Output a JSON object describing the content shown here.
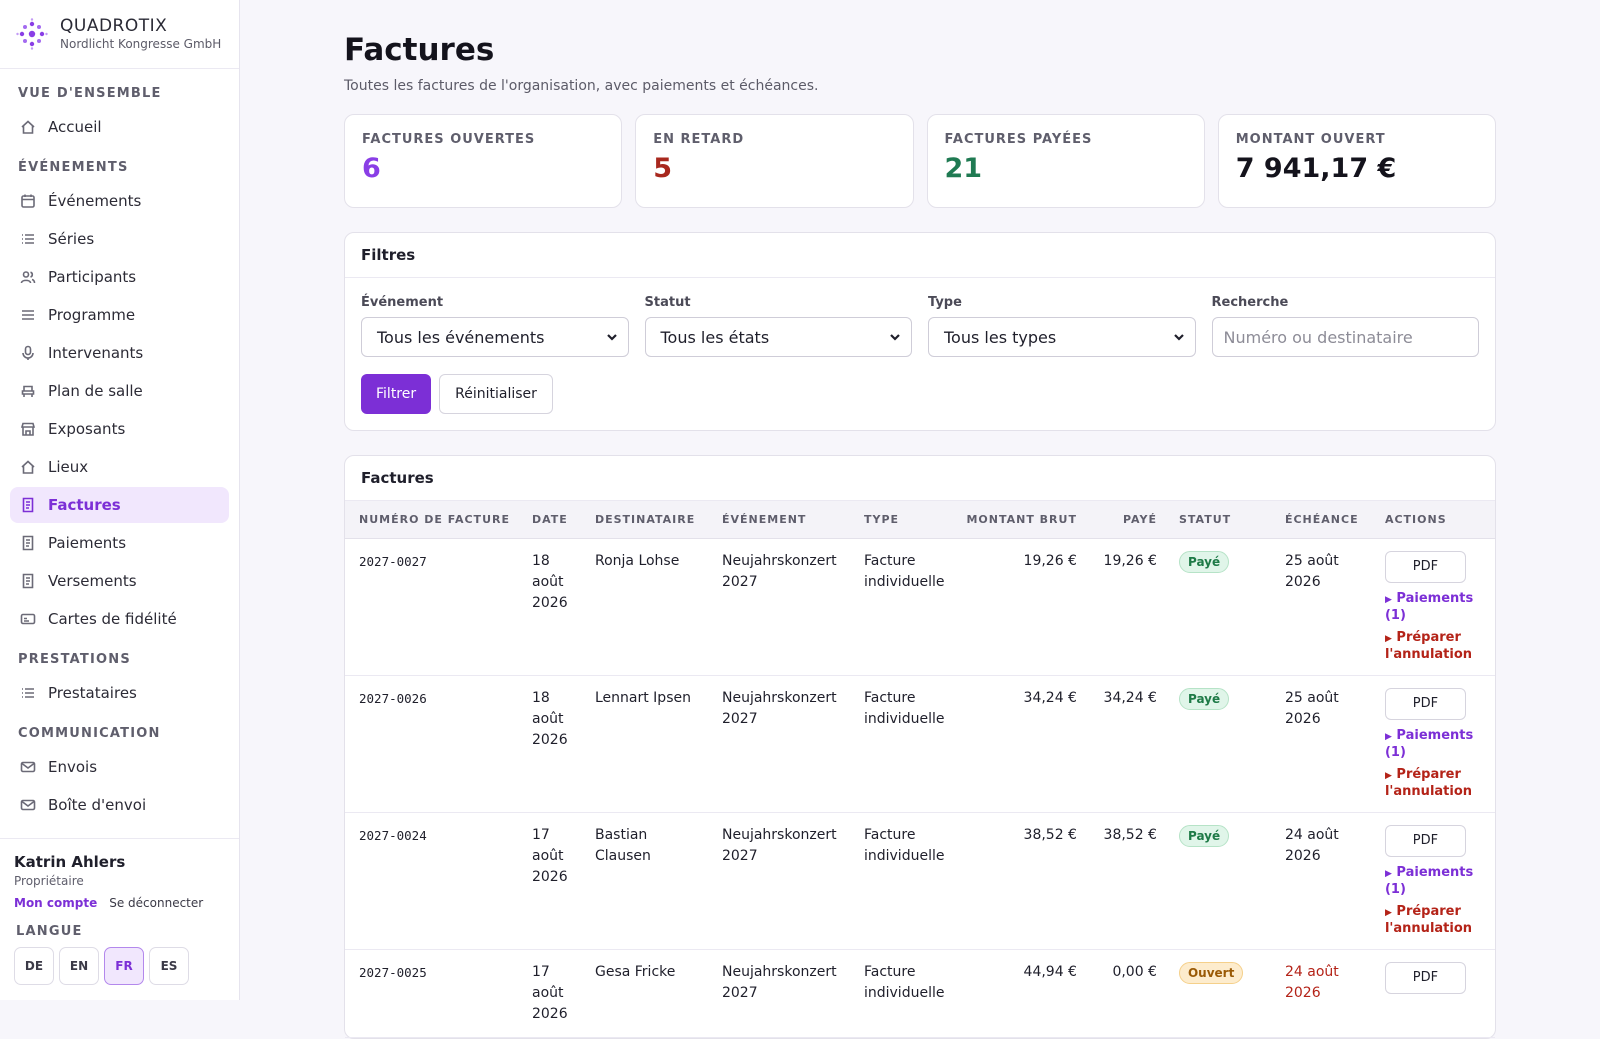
{
  "brand": {
    "name": "QUADROTIX",
    "org": "Nordlicht Kongresse GmbH"
  },
  "nav": {
    "sections": [
      {
        "title": "VUE D'ENSEMBLE",
        "items": [
          {
            "label": "Accueil",
            "icon": "home-icon"
          }
        ]
      },
      {
        "title": "ÉVÉNEMENTS",
        "items": [
          {
            "label": "Événements",
            "icon": "calendar-icon"
          },
          {
            "label": "Séries",
            "icon": "list-icon"
          },
          {
            "label": "Participants",
            "icon": "users-icon"
          },
          {
            "label": "Programme",
            "icon": "menu-icon"
          },
          {
            "label": "Intervenants",
            "icon": "microphone-icon"
          },
          {
            "label": "Plan de salle",
            "icon": "seat-icon"
          },
          {
            "label": "Exposants",
            "icon": "store-icon"
          },
          {
            "label": "Lieux",
            "icon": "home-icon"
          },
          {
            "label": "Factures",
            "icon": "receipt-icon",
            "active": true
          },
          {
            "label": "Paiements",
            "icon": "receipt-icon"
          },
          {
            "label": "Versements",
            "icon": "receipt-icon"
          },
          {
            "label": "Cartes de fidélité",
            "icon": "card-icon"
          }
        ]
      },
      {
        "title": "PRESTATIONS",
        "items": [
          {
            "label": "Prestataires",
            "icon": "list-icon"
          }
        ]
      },
      {
        "title": "COMMUNICATION",
        "items": [
          {
            "label": "Envois",
            "icon": "mail-icon"
          },
          {
            "label": "Boîte d'envoi",
            "icon": "mail-icon"
          }
        ]
      }
    ]
  },
  "user": {
    "name": "Katrin Ahlers",
    "role": "Propriétaire",
    "account_link": "Mon compte",
    "logout_link": "Se déconnecter"
  },
  "language": {
    "label": "LANGUE",
    "options": [
      "DE",
      "EN",
      "FR",
      "ES"
    ],
    "active": "FR"
  },
  "page": {
    "title": "Factures",
    "subtitle": "Toutes les factures de l'organisation, avec paiements et échéances."
  },
  "stats": [
    {
      "label": "FACTURES OUVERTES",
      "value": "6",
      "color": "#8a3ee6"
    },
    {
      "label": "EN RETARD",
      "value": "5",
      "color": "#a8281e"
    },
    {
      "label": "FACTURES PAYÉES",
      "value": "21",
      "color": "#1f7a52"
    },
    {
      "label": "MONTANT OUVERT",
      "value": "7 941,17 €",
      "color": "#14131c"
    }
  ],
  "filters": {
    "title": "Filtres",
    "event": {
      "label": "Événement",
      "value": "Tous les événements"
    },
    "status": {
      "label": "Statut",
      "value": "Tous les états"
    },
    "type": {
      "label": "Type",
      "value": "Tous les types"
    },
    "search": {
      "label": "Recherche",
      "placeholder": "Numéro ou destinataire"
    },
    "apply_label": "Filtrer",
    "reset_label": "Réinitialiser"
  },
  "invoices": {
    "title": "Factures",
    "columns": [
      "NUMÉRO DE FACTURE",
      "DATE",
      "DESTINATAIRE",
      "ÉVÉNEMENT",
      "TYPE",
      "MONTANT BRUT",
      "PAYÉ",
      "STATUT",
      "ÉCHÉANCE",
      "ACTIONS"
    ],
    "pdf_label": "PDF",
    "payments_label": "Paiements (1)",
    "cancel_label": "Préparer l'annulation",
    "rows": [
      {
        "number": "2027-0027",
        "date": "18 août 2026",
        "recipient": "Ronja Lohse",
        "event": "Neujahrskonzert 2027",
        "type": "Facture individuelle",
        "gross": "19,26 €",
        "paid": "19,26 €",
        "status": "Payé",
        "status_kind": "paid",
        "due": "25 août 2026",
        "late": false
      },
      {
        "number": "2027-0026",
        "date": "18 août 2026",
        "recipient": "Lennart Ipsen",
        "event": "Neujahrskonzert 2027",
        "type": "Facture individuelle",
        "gross": "34,24 €",
        "paid": "34,24 €",
        "status": "Payé",
        "status_kind": "paid",
        "due": "25 août 2026",
        "late": false
      },
      {
        "number": "2027-0024",
        "date": "17 août 2026",
        "recipient": "Bastian Clausen",
        "event": "Neujahrskonzert 2027",
        "type": "Facture individuelle",
        "gross": "38,52 €",
        "paid": "38,52 €",
        "status": "Payé",
        "status_kind": "paid",
        "due": "24 août 2026",
        "late": false
      },
      {
        "number": "2027-0025",
        "date": "17 août 2026",
        "recipient": "Gesa Fricke",
        "event": "Neujahrskonzert 2027",
        "type": "Facture individuelle",
        "gross": "44,94 €",
        "paid": "0,00 €",
        "status": "Ouvert",
        "status_kind": "open",
        "due": "24 août 2026",
        "late": true
      }
    ]
  }
}
